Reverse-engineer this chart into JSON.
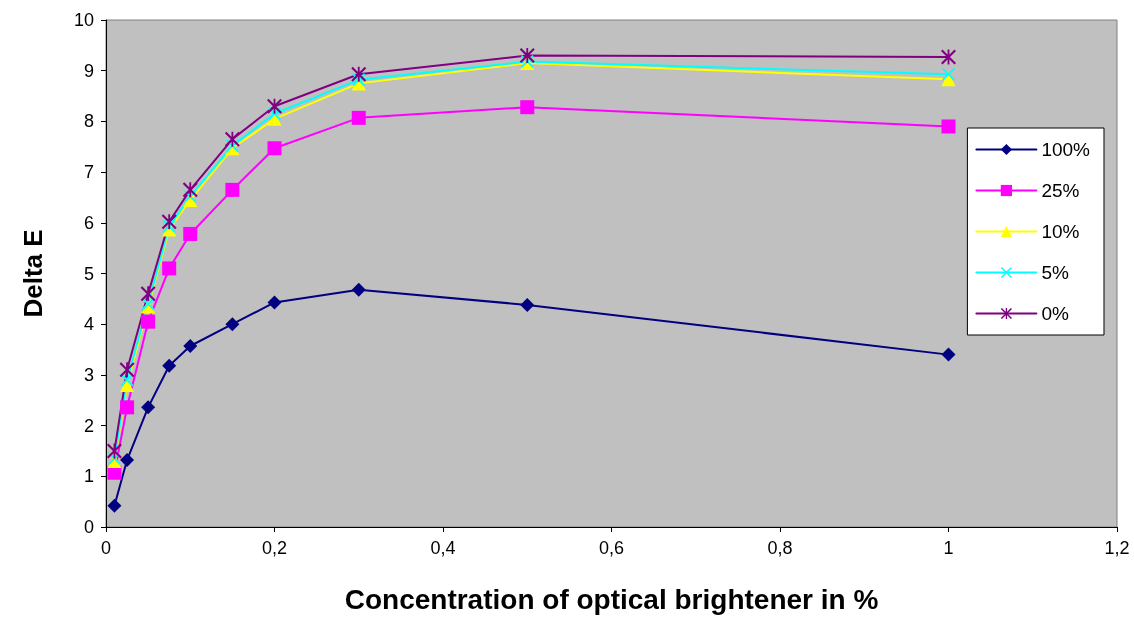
{
  "chart_data": {
    "type": "line",
    "xlabel": "Concentration of optical brightener in %",
    "ylabel": "Delta E",
    "x": [
      0.01,
      0.025,
      0.05,
      0.075,
      0.1,
      0.15,
      0.2,
      0.3,
      0.5,
      1
    ],
    "series": [
      {
        "name": "100%",
        "color": "#000080",
        "marker": "diamond",
        "values": [
          0.42,
          1.32,
          2.36,
          3.18,
          3.57,
          4.0,
          4.43,
          4.68,
          4.38,
          3.4
        ]
      },
      {
        "name": "25%",
        "color": "#ff00ff",
        "marker": "square",
        "values": [
          1.07,
          2.36,
          4.05,
          5.1,
          5.78,
          6.65,
          7.47,
          8.07,
          8.28,
          7.9
        ]
      },
      {
        "name": "10%",
        "color": "#ffff00",
        "marker": "triangle",
        "values": [
          1.3,
          2.8,
          4.35,
          5.87,
          6.45,
          7.47,
          8.05,
          8.75,
          9.15,
          8.83
        ]
      },
      {
        "name": "5%",
        "color": "#00ffff",
        "marker": "cross",
        "values": [
          1.35,
          2.9,
          4.4,
          5.93,
          6.52,
          7.52,
          8.15,
          8.82,
          9.18,
          8.93
        ]
      },
      {
        "name": "0%",
        "color": "#800080",
        "marker": "star",
        "values": [
          1.5,
          3.1,
          4.6,
          6.02,
          6.65,
          7.65,
          8.3,
          8.93,
          9.3,
          9.27
        ]
      }
    ],
    "xlim": [
      0,
      1.2
    ],
    "xticks": [
      0,
      {
        "value": 0.2,
        "label": "0,2"
      },
      {
        "value": 0.4,
        "label": "0,4"
      },
      {
        "value": 0.6,
        "label": "0,6"
      },
      {
        "value": 0.8,
        "label": "0,8"
      },
      1,
      {
        "value": 1.2,
        "label": "1,2"
      }
    ],
    "ylim": [
      0,
      10
    ],
    "yticks": [
      0,
      1,
      2,
      3,
      4,
      5,
      6,
      7,
      8,
      9,
      10
    ],
    "grid": false,
    "legend": "right",
    "line_style": "solid"
  }
}
